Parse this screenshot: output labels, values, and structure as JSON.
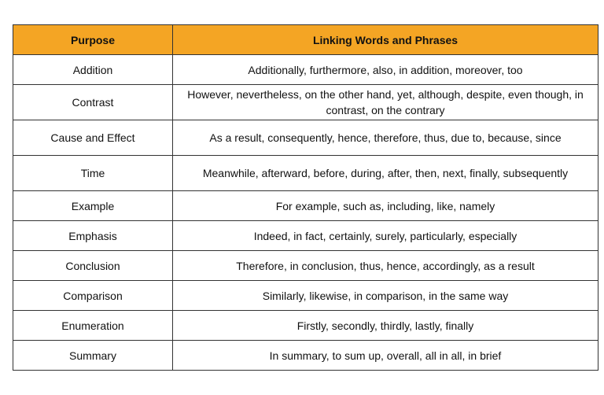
{
  "header_color": "#F4A524",
  "headers": [
    "Purpose",
    "Linking Words and Phrases"
  ],
  "rows": [
    {
      "purpose": "Addition",
      "words": "Additionally, furthermore, also, in addition, moreover, too"
    },
    {
      "purpose": "Contrast",
      "words": "However, nevertheless, on the other hand, yet, although, despite, even though, in contrast, on the contrary"
    },
    {
      "purpose": "Cause and Effect",
      "words": "As a result, consequently, hence, therefore, thus, due to, because, since"
    },
    {
      "purpose": "Time",
      "words": "Meanwhile, afterward, before, during, after, then, next, finally, subsequently"
    },
    {
      "purpose": "Example",
      "words": "For example, such as, including, like, namely"
    },
    {
      "purpose": "Emphasis",
      "words": "Indeed, in fact, certainly, surely, particularly, especially"
    },
    {
      "purpose": "Conclusion",
      "words": "Therefore, in conclusion, thus, hence, accordingly, as a result"
    },
    {
      "purpose": "Comparison",
      "words": "Similarly, likewise, in comparison, in the same way"
    },
    {
      "purpose": "Enumeration",
      "words": "Firstly, secondly, thirdly, lastly, finally"
    },
    {
      "purpose": "Summary",
      "words": "In summary, to sum up, overall, all in all, in brief"
    }
  ]
}
